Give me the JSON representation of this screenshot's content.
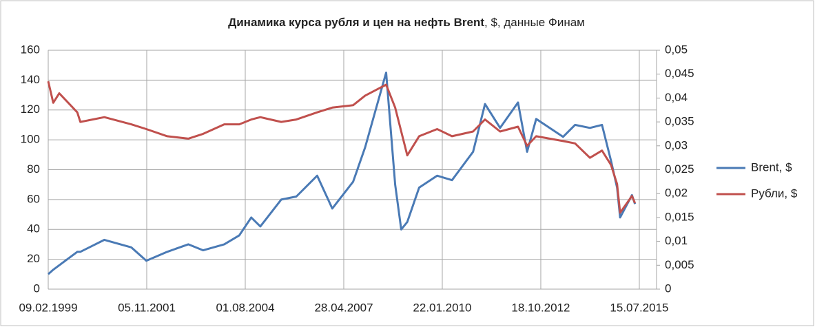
{
  "chart_data": {
    "type": "line",
    "title": "Динамика курса рубля и цен на нефть Brent",
    "subtitle": ", $, данные Финам",
    "x": [
      "09.02.1999",
      "01.04.1999",
      "01.06.1999",
      "01.12.1999",
      "01.01.2000",
      "01.09.2000",
      "01.06.2001",
      "01.11.2001",
      "01.06.2002",
      "01.01.2003",
      "01.06.2003",
      "01.01.2004",
      "01.06.2004",
      "01.10.2004",
      "01.01.2005",
      "01.08.2005",
      "01.01.2006",
      "01.08.2006",
      "01.01.2007",
      "01.08.2007",
      "01.12.2007",
      "01.07.2008",
      "01.10.2008",
      "01.12.2008",
      "01.02.2009",
      "01.06.2009",
      "01.12.2009",
      "01.05.2010",
      "01.12.2010",
      "01.04.2011",
      "01.09.2011",
      "01.03.2012",
      "01.06.2012",
      "01.09.2012",
      "01.06.2013",
      "01.10.2013",
      "01.03.2014",
      "01.07.2014",
      "01.10.2014",
      "01.12.2014",
      "01.01.2015",
      "01.05.2015",
      "01.06.2015"
    ],
    "series": [
      {
        "name": "Brent, $",
        "color": "#4a7ab5",
        "values": [
          10,
          13,
          16,
          25,
          25,
          33,
          28,
          19,
          25,
          30,
          26,
          30,
          36,
          48,
          42,
          60,
          62,
          76,
          54,
          72,
          95,
          145,
          70,
          40,
          45,
          68,
          76,
          73,
          92,
          124,
          108,
          125,
          92,
          114,
          102,
          110,
          108,
          110,
          86,
          68,
          48,
          63,
          57
        ]
      },
      {
        "name": "Рубли, $",
        "color": "#c0504d",
        "axis": "y2",
        "values": [
          0.0435,
          0.039,
          0.041,
          0.037,
          0.035,
          0.036,
          0.0345,
          0.0335,
          0.032,
          0.0315,
          0.0325,
          0.0345,
          0.0345,
          0.0355,
          0.036,
          0.035,
          0.0355,
          0.037,
          0.038,
          0.0385,
          0.0405,
          0.0428,
          0.038,
          0.033,
          0.028,
          0.032,
          0.0335,
          0.032,
          0.033,
          0.0355,
          0.033,
          0.034,
          0.03,
          0.032,
          0.031,
          0.0305,
          0.0275,
          0.029,
          0.026,
          0.022,
          0.016,
          0.0195,
          0.018
        ]
      }
    ],
    "xlim": [
      "09.02.1999",
      "06.01.2016"
    ],
    "xticks": [
      "09.02.1999",
      "05.11.2001",
      "01.08.2004",
      "28.04.2007",
      "22.01.2010",
      "18.10.2012",
      "15.07.2015"
    ],
    "ylim": [
      0,
      160
    ],
    "yticks": [
      0,
      20,
      40,
      60,
      80,
      100,
      120,
      140,
      160
    ],
    "y2lim": [
      0,
      0.05
    ],
    "y2ticks": [
      0,
      {
        "value": 0.005,
        "label": "0,005"
      },
      {
        "value": 0.01,
        "label": "0,01"
      },
      {
        "value": 0.015,
        "label": "0,015"
      },
      {
        "value": 0.02,
        "label": "0,02"
      },
      {
        "value": 0.025,
        "label": "0,025"
      },
      {
        "value": 0.03,
        "label": "0,03"
      },
      {
        "value": 0.035,
        "label": "0,035"
      },
      {
        "value": 0.04,
        "label": "0,04"
      },
      {
        "value": 0.045,
        "label": "0,045"
      },
      {
        "value": 0.05,
        "label": "0,05"
      }
    ],
    "grid": true,
    "legend": "right"
  }
}
